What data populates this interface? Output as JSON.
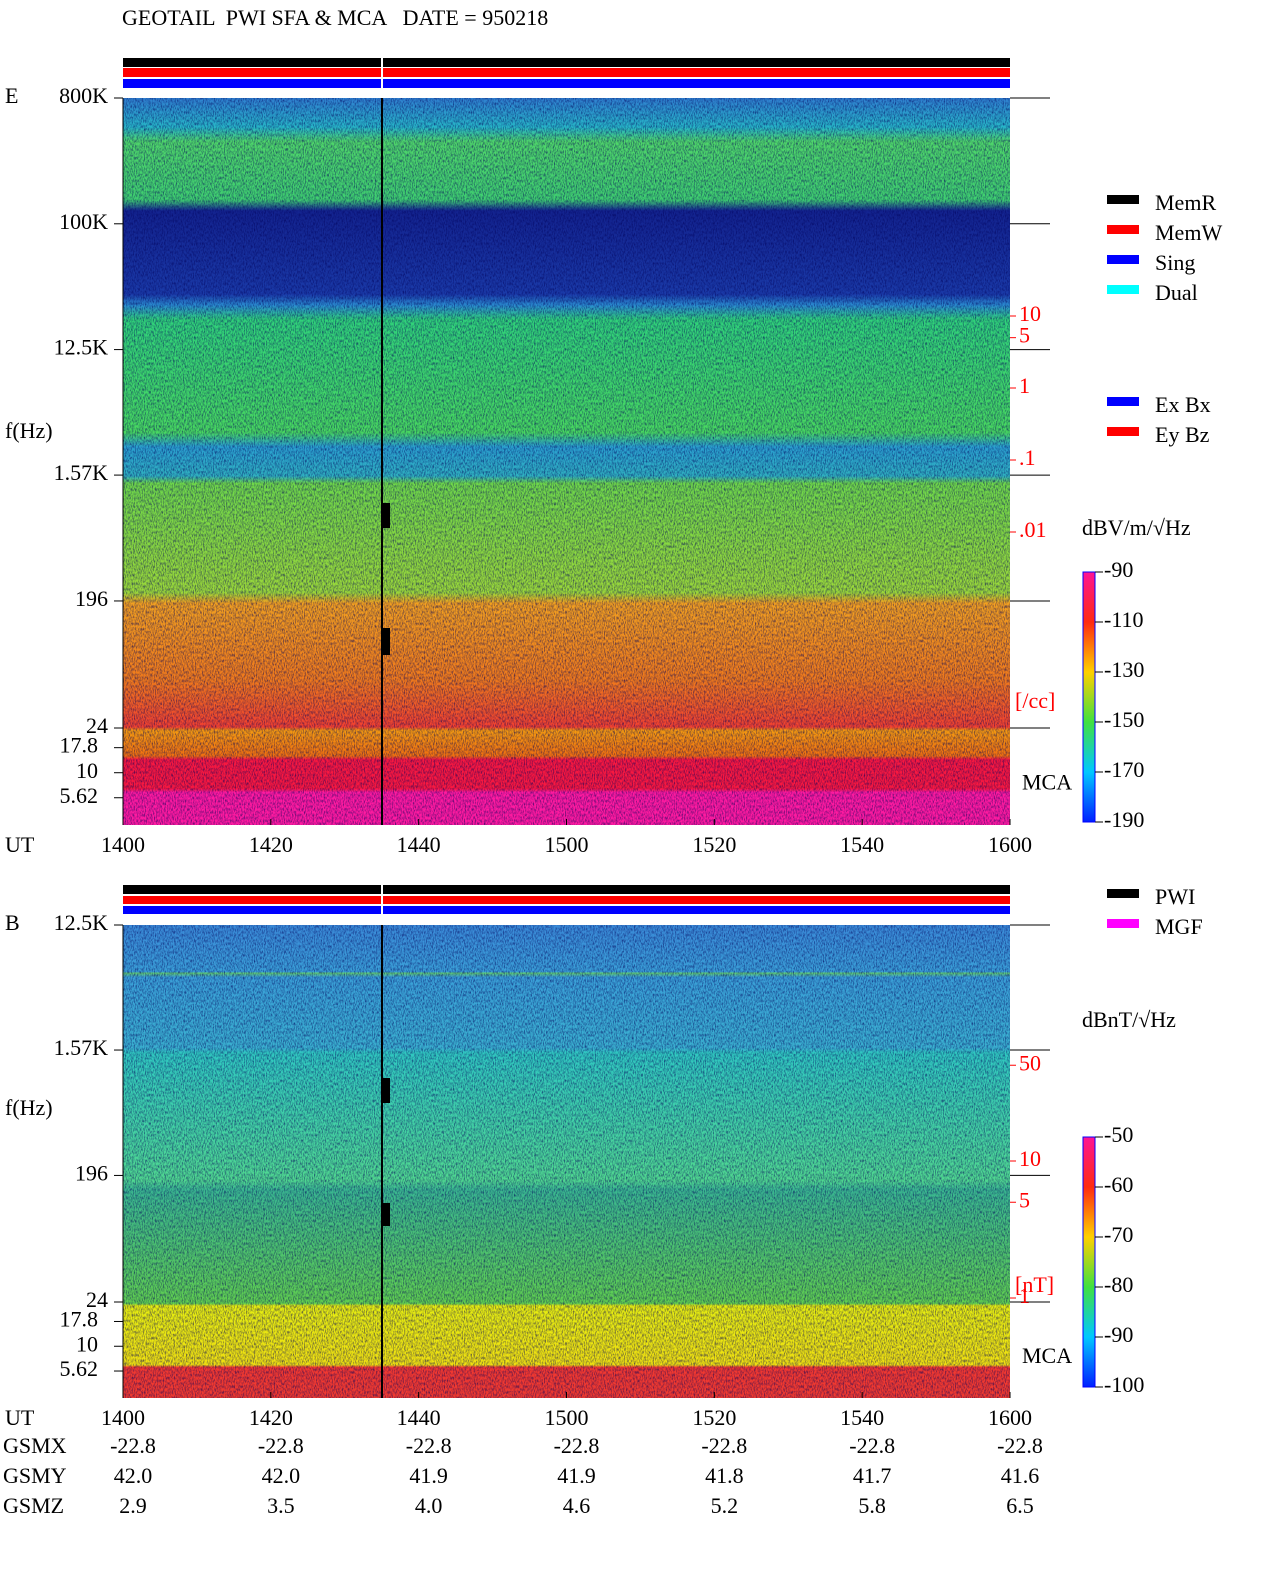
{
  "chart_data": [
    {
      "type": "spectrogram",
      "title": "GEOTAIL  PWI SFA & MCA   DATE = 950218",
      "panel_label": "E",
      "ylabel": "f(Hz)",
      "xlabel": "UT",
      "categories": [
        "1400",
        "1420",
        "1440",
        "1500",
        "1520",
        "1540",
        "1600"
      ],
      "yscale": "log",
      "ylim": [
        24,
        800000
      ],
      "yticks": [
        {
          "value": 800000,
          "label": "800K"
        },
        {
          "value": 100000,
          "label": "100K"
        },
        {
          "value": 12500,
          "label": "12.5K"
        },
        {
          "value": 1570,
          "label": "1.57K"
        },
        196,
        24
      ],
      "mca_label": "MCA",
      "mca_ylim": [
        3,
        28
      ],
      "mca_yticks": [
        17.8,
        10,
        5.62
      ],
      "y2lim": [
        0.001,
        100
      ],
      "y2ticks": [
        10,
        5,
        1,
        {
          "value": 0.1,
          "label": ".1"
        },
        {
          "value": 0.01,
          "label": ".01"
        }
      ],
      "y2label": "[/cc]",
      "colorbar": {
        "label": "dBV/m/√Hz",
        "clim": [
          -190,
          -90
        ],
        "ticks": [
          -90,
          -110,
          -130,
          -150,
          -170,
          -190
        ]
      },
      "legend": [
        {
          "name": "MemR",
          "color": "#000000"
        },
        {
          "name": "MemW",
          "color": "#ff0000"
        },
        {
          "name": "Sing",
          "color": "#0000ff"
        },
        {
          "name": "Dual",
          "color": "#00ffff"
        }
      ],
      "legend2": [
        {
          "name": "Ex Bx",
          "color": "#0000ff"
        },
        {
          "name": "Ey Bz",
          "color": "#ff0000"
        }
      ]
    },
    {
      "type": "spectrogram",
      "panel_label": "B",
      "ylabel": "f(Hz)",
      "xlabel": "UT",
      "categories": [
        "1400",
        "1420",
        "1440",
        "1500",
        "1520",
        "1540",
        "1600"
      ],
      "yscale": "log",
      "ylim": [
        24,
        12500
      ],
      "yticks": [
        {
          "value": 12500,
          "label": "12.5K"
        },
        {
          "value": 1570,
          "label": "1.57K"
        },
        196,
        24
      ],
      "mca_label": "MCA",
      "mca_ylim": [
        3,
        28
      ],
      "mca_yticks": [
        17.8,
        10,
        5.62
      ],
      "y2lim": [
        1,
        100
      ],
      "y2ticks": [
        50,
        10,
        5,
        1
      ],
      "y2label": "[nT]",
      "colorbar": {
        "label": "dBnT/√Hz",
        "clim": [
          -100,
          -50
        ],
        "ticks": [
          -50,
          -60,
          -70,
          -80,
          -90,
          -100
        ]
      },
      "legend": [
        {
          "name": "PWI",
          "color": "#000000"
        },
        {
          "name": "MGF",
          "color": "#ff00ff"
        }
      ]
    }
  ],
  "orbit_table": {
    "rows": [
      {
        "name": "GSMX",
        "values": [
          -22.8,
          -22.8,
          -22.8,
          -22.8,
          -22.8,
          -22.8,
          -22.8
        ]
      },
      {
        "name": "GSMY",
        "values": [
          "42.0",
          "42.0",
          41.9,
          41.9,
          41.8,
          41.7,
          41.6
        ]
      },
      {
        "name": "GSMZ",
        "values": [
          2.9,
          3.5,
          "4.0",
          4.6,
          5.2,
          5.8,
          6.5
        ]
      }
    ]
  }
}
